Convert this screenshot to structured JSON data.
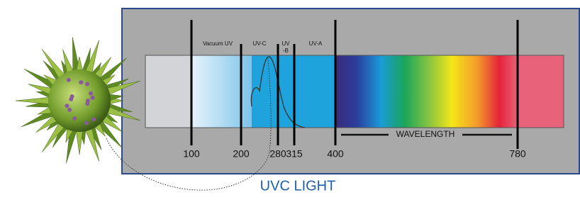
{
  "title": "UVC LIGHT",
  "axis_label": "WAVELENGTH",
  "regions": [
    {
      "lines": [
        "Vacuum UV"
      ]
    },
    {
      "lines": [
        "UV-C"
      ]
    },
    {
      "lines": [
        "UV",
        "-B"
      ]
    },
    {
      "lines": [
        "UV-A"
      ]
    }
  ],
  "wavelength_marks": [
    100,
    200,
    280,
    315,
    400,
    780
  ]
}
